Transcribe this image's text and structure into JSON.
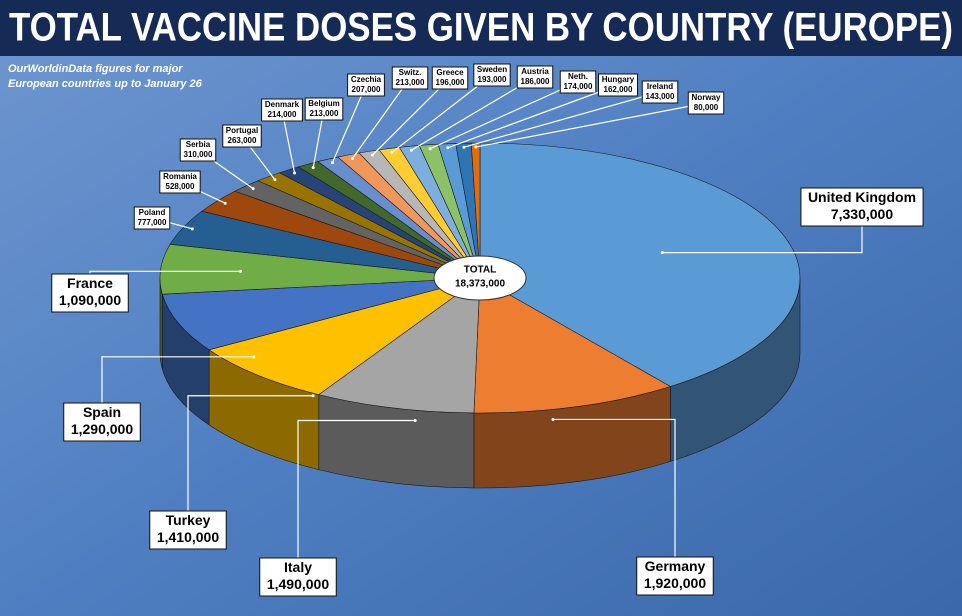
{
  "chart_data": {
    "type": "pie",
    "title": "TOTAL VACCINE DOSES GIVEN BY COUNTRY (EUROPE)",
    "subtitle": [
      "OurWorldinData figures for major",
      "European countries up to January 26"
    ],
    "annotations": [
      "TOTAL",
      "18,373,000"
    ],
    "categories": [
      "United Kingdom",
      "Germany",
      "Italy",
      "Turkey",
      "Spain",
      "France",
      "Poland",
      "Romania",
      "Serbia",
      "Portugal",
      "Denmark",
      "Belgium",
      "Czechia",
      "Switz.",
      "Greece",
      "Sweden",
      "Austria",
      "Neth.",
      "Hungary",
      "Ireland",
      "Norway"
    ],
    "values": [
      7330000,
      1920000,
      1490000,
      1410000,
      1290000,
      1090000,
      777000,
      528000,
      310000,
      263000,
      214000,
      213000,
      207000,
      213000,
      196000,
      193000,
      186000,
      174000,
      162000,
      143000,
      80000
    ],
    "value_labels": [
      "7,330,000",
      "1,920,000",
      "1,490,000",
      "1,410,000",
      "1,290,000",
      "1,090,000",
      "777,000",
      "528,000",
      "310,000",
      "263,000",
      "214,000",
      "213,000",
      "207,000",
      "213,000",
      "196,000",
      "193,000",
      "186,000",
      "174,000",
      "162,000",
      "143,000",
      "80,000"
    ],
    "colors": [
      "#5b9bd5",
      "#ed7d31",
      "#a5a5a5",
      "#ffc000",
      "#4472c4",
      "#70ad47",
      "#255e91",
      "#9e480e",
      "#636363",
      "#997300",
      "#264478",
      "#43682b",
      "#698ed0",
      "#f1975a",
      "#b7b7b7",
      "#ffcd33",
      "#7cafdd",
      "#8cc168",
      "#5b9bd5",
      "#2e75b6",
      "#e46c0a"
    ]
  }
}
